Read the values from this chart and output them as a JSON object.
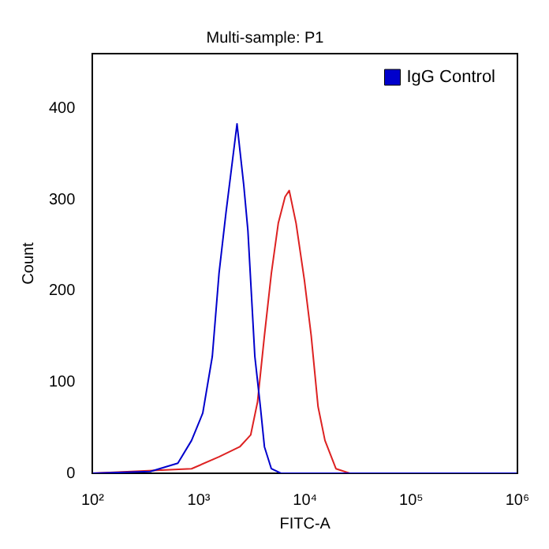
{
  "chart_data": {
    "type": "line",
    "title": "Multi-sample: P1",
    "xlabel": "FITC-A",
    "ylabel": "Count",
    "log": "x",
    "xlim": [
      100,
      1000000
    ],
    "xticks": [
      {
        "value": 100,
        "label": "10²"
      },
      {
        "value": 1000,
        "label": "10³"
      },
      {
        "value": 10000,
        "label": "10⁴"
      },
      {
        "value": 100000,
        "label": "10⁵"
      },
      {
        "value": 1000000,
        "label": "10⁶"
      }
    ],
    "ylim": [
      0,
      460
    ],
    "yticks": [
      0,
      100,
      200,
      300,
      400
    ],
    "grid": false,
    "legend": "top right",
    "marker": "none",
    "line_style": "solid",
    "series": [
      {
        "name": "IgG Control",
        "color": "#0000cc",
        "x": [
          100,
          350,
          635,
          855,
          1090,
          1340,
          1550,
          1800,
          2290,
          2650,
          2900,
          3370,
          3800,
          4150,
          4820,
          5930,
          1000000
        ],
        "values": [
          0,
          2,
          11,
          36,
          66,
          128,
          219,
          285,
          383,
          316,
          266,
          128,
          73,
          29,
          5,
          0,
          0
        ]
      },
      {
        "color": "#dd2222",
        "x": [
          100,
          855,
          1550,
          2430,
          3080,
          3570,
          4150,
          4820,
          5600,
          6490,
          7100,
          8240,
          9860,
          11430,
          13270,
          15410,
          19550,
          26370,
          1000000
        ],
        "values": [
          0,
          5,
          18,
          29,
          42,
          78,
          151,
          219,
          274,
          303,
          310,
          274,
          212,
          151,
          73,
          36,
          5,
          0,
          0
        ]
      }
    ]
  }
}
